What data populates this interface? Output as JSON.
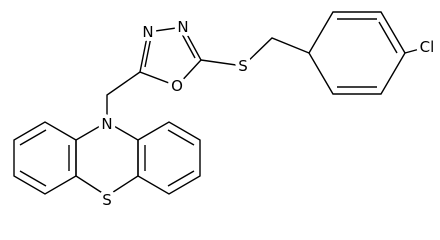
{
  "atom_labels": [
    "N",
    "N",
    "O",
    "S",
    "Cl",
    "N",
    "S"
  ]
}
